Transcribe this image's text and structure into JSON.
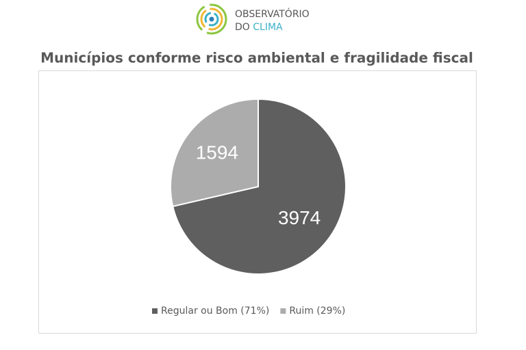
{
  "logo": {
    "name_top": "OBSERVATÓRIO",
    "name_bottom_first": "DO",
    "name_bottom_second": "CLIMA"
  },
  "chart_data": {
    "type": "pie",
    "title": "Municípios conforme risco ambiental e fragilidade fiscal",
    "categories": [
      "Regular ou Bom (71%)",
      "Ruim (29%)"
    ],
    "values": [
      3974,
      1594
    ],
    "colors": [
      "#5f5f5f",
      "#acacac"
    ],
    "legend": "bottom"
  }
}
